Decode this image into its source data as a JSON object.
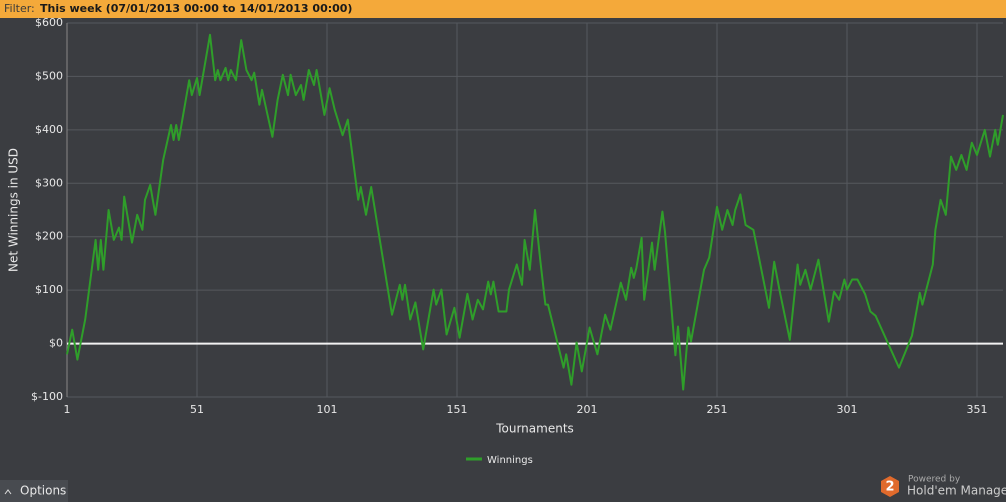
{
  "filter": {
    "label": "Filter:",
    "value": "This week (07/01/2013 00:00 to 14/01/2013 00:00)"
  },
  "footer": {
    "options": "Options",
    "logo": "2",
    "powered_by": "Powered by",
    "brand": "Hold'em Manager"
  },
  "chart_data": {
    "type": "line",
    "y_label": "Net Winnings in USD",
    "x_label": "Tournaments",
    "xlim": [
      1,
      361
    ],
    "xticks": [
      1,
      51,
      101,
      151,
      201,
      251,
      301,
      351
    ],
    "ylim": [
      -100,
      600
    ],
    "yticks": [
      {
        "value": -100,
        "label": "$-100"
      },
      {
        "value": 0,
        "label": "$0"
      },
      {
        "value": 100,
        "label": "$100"
      },
      {
        "value": 200,
        "label": "$200"
      },
      {
        "value": 300,
        "label": "$300"
      },
      {
        "value": 400,
        "label": "$400"
      },
      {
        "value": 500,
        "label": "$500"
      },
      {
        "value": 600,
        "label": "$600"
      }
    ],
    "grid": true,
    "legend": "bottom",
    "x": [
      1,
      3,
      5,
      8,
      12,
      13,
      14,
      15,
      17,
      19,
      21,
      22,
      23,
      26,
      28,
      30,
      31,
      33,
      35,
      38,
      41,
      42,
      43,
      44,
      48,
      49,
      51,
      52,
      56,
      58,
      59,
      60,
      62,
      63,
      64,
      66,
      68,
      70,
      72,
      73,
      75,
      76,
      80,
      82,
      84,
      86,
      87,
      89,
      91,
      92,
      94,
      96,
      97,
      100,
      102,
      104,
      107,
      109,
      113,
      114,
      116,
      118,
      126,
      129,
      130,
      131,
      133,
      135,
      138,
      142,
      143,
      145,
      147,
      150,
      152,
      155,
      157,
      159,
      161,
      163,
      164,
      165,
      167,
      170,
      171,
      174,
      176,
      177,
      179,
      181,
      183,
      185,
      186,
      192,
      193,
      195,
      197,
      199,
      202,
      205,
      208,
      210,
      214,
      216,
      218,
      219,
      220,
      222,
      223,
      226,
      227,
      230,
      231,
      235,
      236,
      238,
      240,
      241,
      246,
      248,
      251,
      253,
      255,
      257,
      258,
      260,
      262,
      265,
      271,
      273,
      275,
      279,
      282,
      283,
      285,
      287,
      289,
      290,
      294,
      296,
      298,
      300,
      301,
      303,
      305,
      308,
      310,
      312,
      321,
      326,
      329,
      330,
      334,
      335,
      337,
      339,
      341,
      343,
      345,
      347,
      349,
      351,
      354,
      356,
      358,
      359,
      361
    ],
    "series": [
      {
        "name": "Winnings",
        "color": "#2f9e2a",
        "values": [
          -20,
          26,
          -30,
          45,
          194,
          138,
          194,
          138,
          250,
          194,
          217,
          194,
          275,
          189,
          241,
          213,
          269,
          297,
          241,
          344,
          409,
          381,
          409,
          381,
          493,
          465,
          497,
          465,
          578,
          493,
          512,
          493,
          516,
          493,
          512,
          493,
          568,
          512,
          493,
          507,
          447,
          475,
          387,
          456,
          503,
          465,
          503,
          465,
          484,
          456,
          512,
          484,
          512,
          428,
          478,
          437,
          390,
          419,
          269,
          293,
          241,
          293,
          54,
          110,
          82,
          110,
          45,
          77,
          -11,
          101,
          73,
          101,
          17,
          67,
          11,
          93,
          45,
          82,
          64,
          116,
          92,
          116,
          60,
          60,
          101,
          148,
          110,
          194,
          138,
          250,
          157,
          73,
          73,
          -45,
          -20,
          -77,
          2,
          -52,
          30,
          -20,
          54,
          26,
          114,
          82,
          142,
          123,
          142,
          198,
          82,
          189,
          138,
          247,
          209,
          -22,
          32,
          -86,
          30,
          4,
          138,
          161,
          256,
          213,
          250,
          222,
          250,
          279,
          222,
          213,
          67,
          153,
          101,
          7,
          148,
          110,
          138,
          101,
          138,
          157,
          41,
          97,
          82,
          120,
          101,
          120,
          120,
          92,
          60,
          52,
          -45,
          15,
          95,
          73,
          148,
          213,
          269,
          241,
          350,
          325,
          353,
          325,
          376,
          353,
          400,
          350,
          400,
          372,
          428
        ]
      }
    ]
  }
}
